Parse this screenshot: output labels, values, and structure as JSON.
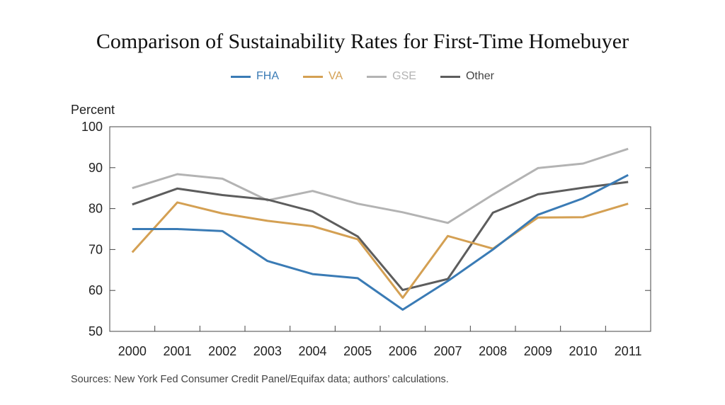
{
  "chart_data": {
    "type": "line",
    "title": "Comparison of Sustainability Rates for First-Time Homebuyer",
    "ylabel": "Percent",
    "xlabel": "",
    "x": [
      "2000",
      "2001",
      "2002",
      "2003",
      "2004",
      "2005",
      "2006",
      "2007",
      "2008",
      "2009",
      "2010",
      "2011"
    ],
    "ylim": [
      50,
      100
    ],
    "yticks": [
      "50",
      "60",
      "70",
      "80",
      "90",
      "100"
    ],
    "legend_position": "top-center",
    "grid": false,
    "series": [
      {
        "name": "FHA",
        "color": "#3a7bb5",
        "values": [
          75,
          75,
          74.5,
          67.2,
          64,
          63,
          55.3,
          62.3,
          70,
          78.5,
          82.5,
          88.2
        ]
      },
      {
        "name": "VA",
        "color": "#d4a053",
        "values": [
          69.3,
          81.5,
          78.8,
          77,
          75.7,
          72.5,
          58.2,
          73.3,
          70.2,
          77.8,
          77.9,
          81.2
        ]
      },
      {
        "name": "GSE",
        "color": "#b3b3b3",
        "values": [
          85,
          88.4,
          87.3,
          82,
          84.3,
          81.2,
          79.1,
          76.5,
          83.4,
          89.9,
          91,
          94.6
        ]
      },
      {
        "name": "Other",
        "color": "#5d5d5d",
        "values": [
          81,
          84.9,
          83.3,
          82.2,
          79.3,
          73.2,
          60.1,
          62.8,
          79,
          83.5,
          85.1,
          86.5
        ]
      }
    ]
  },
  "source_note": "Sources: New York Fed Consumer Credit Panel/Equifax data; authors’ calculations."
}
